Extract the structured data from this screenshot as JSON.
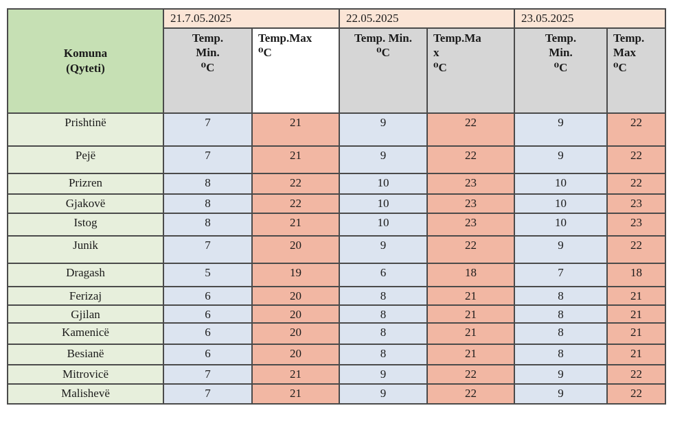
{
  "table": {
    "corner_header": "Komuna\n(Qyteti)",
    "date_groups": [
      {
        "label": "21.7.05.2025"
      },
      {
        "label": "22.05.2025"
      },
      {
        "label": "23.05.2025"
      }
    ],
    "columns": [
      {
        "label": "Temp.\nMin.\n⁰C",
        "align": "center",
        "white_bg": false
      },
      {
        "label": "Temp.Max\n⁰C",
        "align": "left",
        "white_bg": true
      },
      {
        "label": "Temp. Min.\n⁰C",
        "align": "center",
        "white_bg": false
      },
      {
        "label": "Temp.Ma\nx\n⁰C",
        "align": "left",
        "white_bg": false
      },
      {
        "label": "Temp.\nMin.\n⁰C",
        "align": "center",
        "white_bg": false
      },
      {
        "label": "Temp.\nMax\n⁰C",
        "align": "left",
        "white_bg": false
      }
    ],
    "rows": [
      {
        "city": "Prishtinë",
        "values": [
          7,
          21,
          9,
          22,
          9,
          22
        ]
      },
      {
        "city": "Pejë",
        "values": [
          7,
          21,
          9,
          22,
          9,
          22
        ]
      },
      {
        "city": "Prizren",
        "values": [
          8,
          22,
          10,
          23,
          10,
          22
        ]
      },
      {
        "city": "Gjakovë",
        "values": [
          8,
          22,
          10,
          23,
          10,
          23
        ]
      },
      {
        "city": "Istog",
        "values": [
          8,
          21,
          10,
          23,
          10,
          23
        ]
      },
      {
        "city": "Junik",
        "values": [
          7,
          20,
          9,
          22,
          9,
          22
        ]
      },
      {
        "city": "Dragash",
        "values": [
          5,
          19,
          6,
          18,
          7,
          18
        ]
      },
      {
        "city": "Ferizaj",
        "values": [
          6,
          20,
          8,
          21,
          8,
          21
        ]
      },
      {
        "city": "Gjilan",
        "values": [
          6,
          20,
          8,
          21,
          8,
          21
        ]
      },
      {
        "city": "Kamenicë",
        "values": [
          6,
          20,
          8,
          21,
          8,
          21
        ]
      },
      {
        "city": "Besianë",
        "values": [
          6,
          20,
          8,
          21,
          8,
          21
        ]
      },
      {
        "city": "Mitrovicë",
        "values": [
          7,
          21,
          9,
          22,
          9,
          22
        ]
      },
      {
        "city": "Malishevë",
        "values": [
          7,
          21,
          9,
          22,
          9,
          22
        ]
      }
    ]
  },
  "colors": {
    "corner_bg": "#c6e0b4",
    "date_bg": "#fbe5d6",
    "col_header_bg": "#d6d6d6",
    "col_header_white_bg": "#ffffff",
    "city_bg": "#e7efdc",
    "min_bg": "#dce4f0",
    "max_bg": "#f2b7a3",
    "border": "#4a4a4a",
    "text": "#1a1a1a"
  }
}
